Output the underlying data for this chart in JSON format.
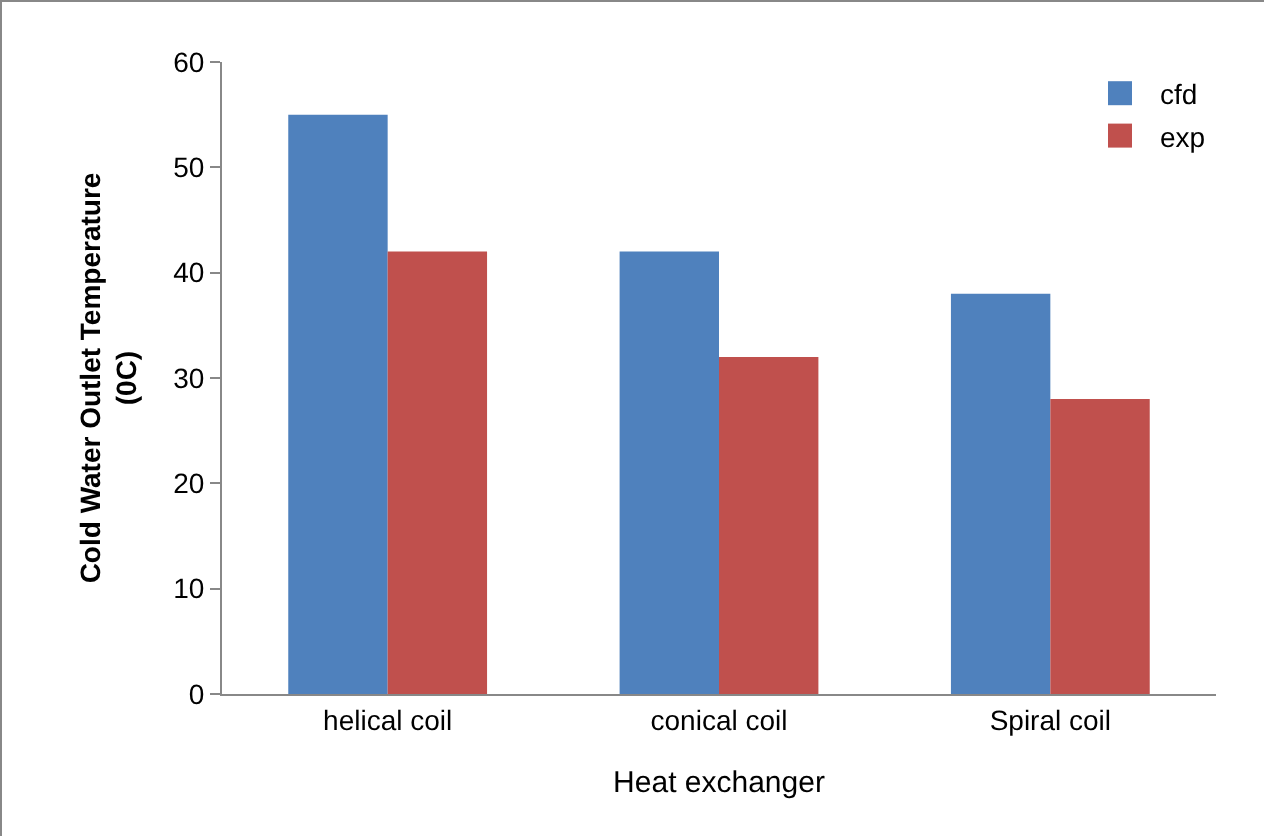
{
  "chart_data": {
    "type": "bar",
    "xlabel": "Heat exchanger",
    "ylabel": "Cold Water Outlet Temperature\n(0C)",
    "categories": [
      "helical coil",
      "conical coil",
      "Spiral coil"
    ],
    "series": [
      {
        "name": "cfd",
        "color": "#4f81bd",
        "values": [
          55,
          42,
          38
        ]
      },
      {
        "name": "exp",
        "color": "#c0504d",
        "values": [
          42,
          32,
          28
        ]
      }
    ],
    "ylim": [
      0,
      60
    ],
    "yticks": [
      0,
      10,
      20,
      30,
      40,
      50,
      60
    ],
    "grid": false,
    "legend": "top right"
  }
}
